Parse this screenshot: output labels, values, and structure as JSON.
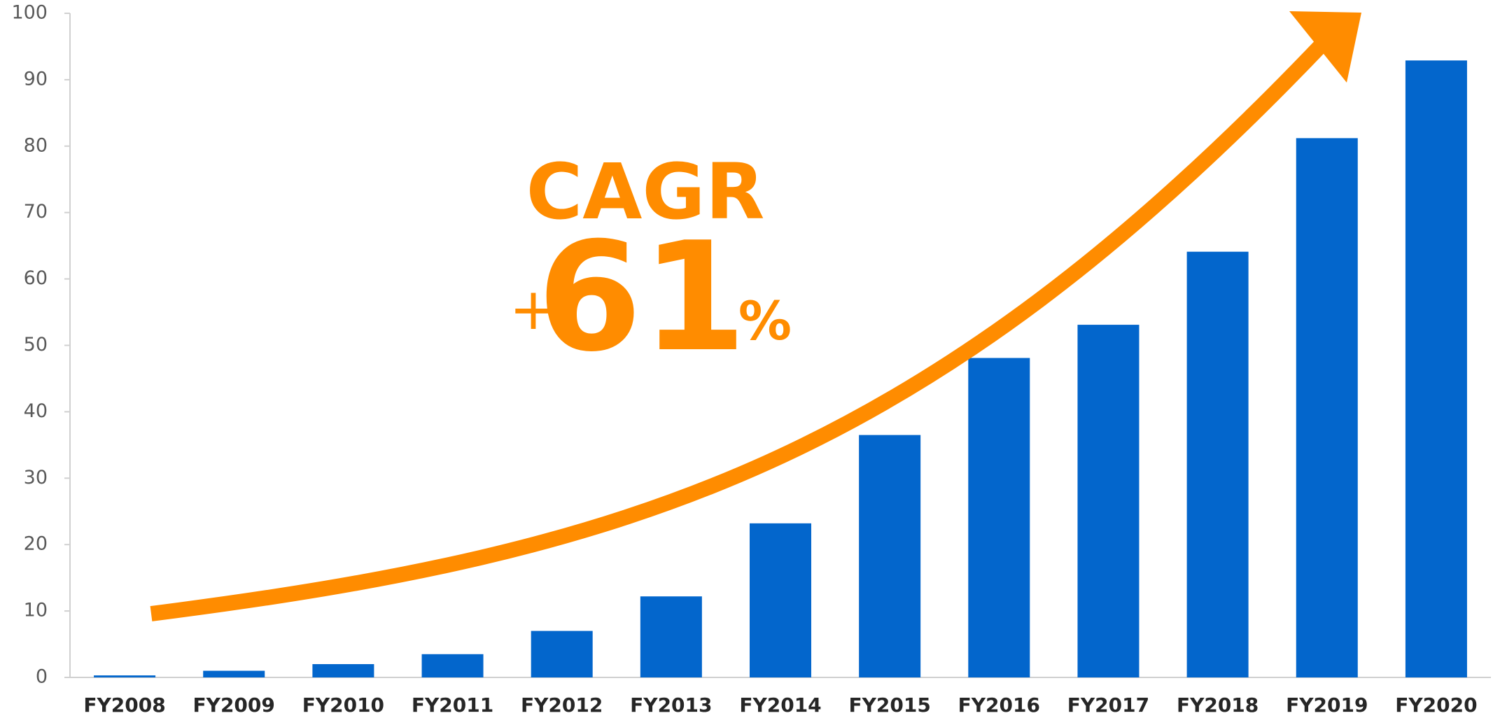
{
  "chart_data": {
    "type": "bar",
    "categories": [
      "FY2008",
      "FY2009",
      "FY2010",
      "FY2011",
      "FY2012",
      "FY2013",
      "FY2014",
      "FY2015",
      "FY2016",
      "FY2017",
      "FY2018",
      "FY2019",
      "FY2020"
    ],
    "values": [
      0.3,
      1,
      2,
      3.5,
      7,
      12.2,
      23.2,
      36.5,
      48.1,
      53.1,
      64.1,
      81.2,
      92.9
    ],
    "color": "#0366cc",
    "ylim": [
      0,
      100
    ],
    "yticks": [
      0,
      10,
      20,
      30,
      40,
      50,
      60,
      70,
      80,
      90,
      100
    ],
    "grid": false,
    "annotation": {
      "title": "CAGR",
      "prefix": "+",
      "value": 61,
      "suffix": "%",
      "color": "#ff8c00"
    }
  }
}
